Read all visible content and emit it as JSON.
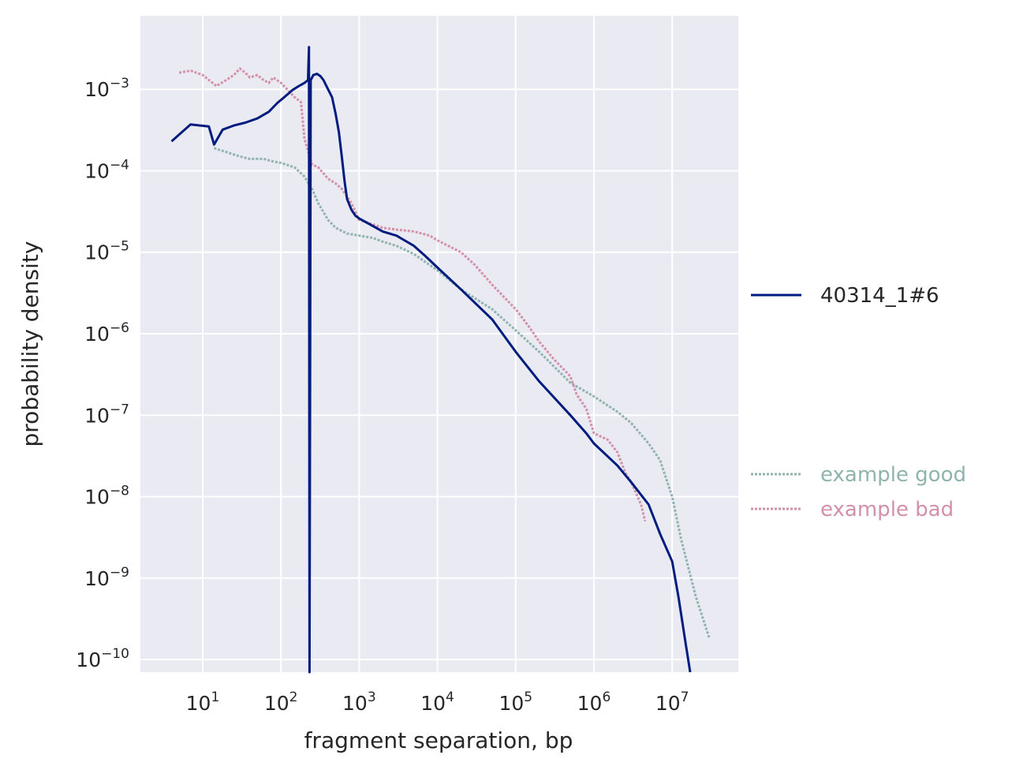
{
  "chart_data": {
    "type": "line",
    "xlabel": "fragment separation, bp",
    "ylabel": "probability density",
    "xscale": "log",
    "yscale": "log",
    "xlim": [
      1.6,
      70000000
    ],
    "ylim": [
      7e-11,
      0.008
    ],
    "grid": true,
    "x_ticks": [
      {
        "base": "10",
        "exp": "1",
        "value": 10
      },
      {
        "base": "10",
        "exp": "2",
        "value": 100
      },
      {
        "base": "10",
        "exp": "3",
        "value": 1000
      },
      {
        "base": "10",
        "exp": "4",
        "value": 10000
      },
      {
        "base": "10",
        "exp": "5",
        "value": 100000
      },
      {
        "base": "10",
        "exp": "6",
        "value": 1000000
      },
      {
        "base": "10",
        "exp": "7",
        "value": 10000000
      }
    ],
    "y_ticks": [
      {
        "base": "10",
        "exp": "−3",
        "value": 0.001
      },
      {
        "base": "10",
        "exp": "−4",
        "value": 0.0001
      },
      {
        "base": "10",
        "exp": "−5",
        "value": 1e-05
      },
      {
        "base": "10",
        "exp": "−6",
        "value": 1e-06
      },
      {
        "base": "10",
        "exp": "−7",
        "value": 1e-07
      },
      {
        "base": "10",
        "exp": "−8",
        "value": 1e-08
      },
      {
        "base": "10",
        "exp": "−9",
        "value": 1e-09
      },
      {
        "base": "10",
        "exp": "−10",
        "value": 1e-10
      }
    ],
    "legend": {
      "placement": "right",
      "primary": [
        "40314_1#6"
      ],
      "examples": [
        "example good",
        "example bad"
      ]
    },
    "series": [
      {
        "name": "40314_1#6",
        "color": "#001c7f",
        "style": "solid",
        "x": [
          4,
          7,
          12,
          14,
          18,
          25,
          35,
          50,
          70,
          90,
          110,
          140,
          170,
          200,
          222,
          228,
          232,
          240,
          260,
          290,
          320,
          350,
          400,
          450,
          500,
          550,
          600,
          650,
          700,
          800,
          900,
          1000,
          1500,
          2000,
          3000,
          5000,
          7000,
          10000,
          20000,
          50000,
          100000,
          200000,
          500000,
          800000,
          1000000,
          2000000,
          3000000,
          5000000,
          7000000,
          10000000,
          12000000,
          15000000,
          17000000
        ],
        "y": [
          0.00023,
          0.00037,
          0.00035,
          0.00021,
          0.00032,
          0.00036,
          0.00039,
          0.00044,
          0.00053,
          0.00068,
          0.0008,
          0.00098,
          0.0011,
          0.0012,
          0.0013,
          0.0033,
          7e-11,
          0.0013,
          0.0015,
          0.00155,
          0.00145,
          0.0013,
          0.001,
          0.0008,
          0.0005,
          0.0003,
          0.00015,
          7.5e-05,
          4.5e-05,
          3.3e-05,
          2.8e-05,
          2.6e-05,
          2.1e-05,
          1.8e-05,
          1.6e-05,
          1.2e-05,
          9e-06,
          6.5e-06,
          3.5e-06,
          1.5e-06,
          6e-07,
          2.6e-07,
          1e-07,
          6e-08,
          4.5e-08,
          2.4e-08,
          1.5e-08,
          8e-09,
          3.5e-09,
          1.6e-09,
          6e-10,
          1.5e-10,
          2e-11
        ]
      },
      {
        "name": "example good",
        "color": "#8fb3ad",
        "style": "dotted",
        "x": [
          14,
          20,
          30,
          40,
          60,
          80,
          100,
          150,
          200,
          250,
          300,
          400,
          500,
          700,
          1000,
          1500,
          2000,
          3000,
          5000,
          10000,
          20000,
          50000,
          100000,
          200000,
          500000,
          1000000,
          2000000,
          3000000,
          5000000,
          7000000,
          10000000,
          13000000,
          20000000,
          30000000
        ],
        "y": [
          0.00019,
          0.00017,
          0.00015,
          0.00014,
          0.00014,
          0.00013,
          0.000125,
          0.00011,
          8.5e-05,
          6e-05,
          4e-05,
          2.5e-05,
          2e-05,
          1.7e-05,
          1.6e-05,
          1.5e-05,
          1.35e-05,
          1.2e-05,
          9.5e-06,
          6e-06,
          3.5e-06,
          2e-06,
          1.1e-06,
          6e-07,
          2.5e-07,
          1.7e-07,
          1.1e-07,
          8e-08,
          4.5e-08,
          2.8e-08,
          1e-08,
          3e-09,
          6e-10,
          1.8e-10
        ]
      },
      {
        "name": "example bad",
        "color": "#d390aa",
        "style": "dotted",
        "x": [
          5,
          7,
          10,
          15,
          20,
          25,
          30,
          35,
          40,
          50,
          60,
          70,
          80,
          100,
          120,
          150,
          180,
          200,
          220,
          250,
          300,
          400,
          500,
          600,
          800,
          1000,
          1500,
          2000,
          3000,
          5000,
          8000,
          10000,
          20000,
          30000,
          50000,
          80000,
          100000,
          150000,
          200000,
          300000,
          500000,
          600000,
          800000,
          1000000,
          1500000,
          2000000,
          2500000,
          3000000,
          4000000,
          4500000
        ],
        "y": [
          0.0016,
          0.0017,
          0.0015,
          0.0011,
          0.0013,
          0.0015,
          0.0018,
          0.0016,
          0.0014,
          0.0015,
          0.0013,
          0.0012,
          0.0014,
          0.0012,
          0.001,
          0.0008,
          0.0007,
          0.00025,
          0.00018,
          0.00012,
          0.00011,
          8e-05,
          7e-05,
          6e-05,
          4e-05,
          2.5e-05,
          2.2e-05,
          2e-05,
          1.9e-05,
          1.8e-05,
          1.6e-05,
          1.4e-05,
          1e-05,
          7e-06,
          4e-06,
          2.5e-06,
          2e-06,
          1.2e-06,
          8e-07,
          5e-07,
          3e-07,
          1.8e-07,
          1.2e-07,
          6e-08,
          5e-08,
          3.5e-08,
          2e-08,
          1.5e-08,
          8e-09,
          5e-09
        ]
      }
    ]
  }
}
